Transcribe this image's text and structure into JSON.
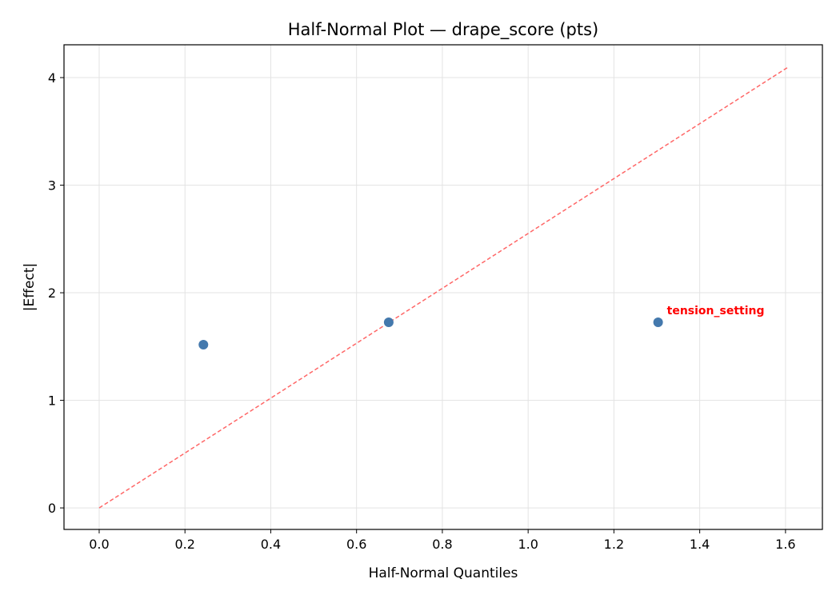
{
  "chart_data": {
    "type": "scatter",
    "title": "Half-Normal Plot — drape_score (pts)",
    "xlabel": "Half-Normal Quantiles",
    "ylabel": "|Effect|",
    "xlim": [
      -0.082,
      1.686
    ],
    "ylim": [
      -0.2,
      4.305
    ],
    "xticks": [
      0.0,
      0.2,
      0.4,
      0.6,
      0.8,
      1.0,
      1.2,
      1.4,
      1.6
    ],
    "xtick_labels": [
      "0.0",
      "0.2",
      "0.4",
      "0.6",
      "0.8",
      "1.0",
      "1.2",
      "1.4",
      "1.6"
    ],
    "yticks": [
      0,
      1,
      2,
      3,
      4
    ],
    "ytick_labels": [
      "0",
      "1",
      "2",
      "3",
      "4"
    ],
    "grid": true,
    "points": [
      {
        "x": 0.243,
        "y": 1.517
      },
      {
        "x": 0.675,
        "y": 1.725
      },
      {
        "x": 1.303,
        "y": 1.725,
        "label": "tension_setting"
      }
    ],
    "reference_line": {
      "x": [
        0,
        1.606
      ],
      "y": [
        0,
        4.097
      ],
      "style": "dashed"
    },
    "colors": {
      "points": "#4479ad",
      "line": "#ff6666",
      "annotation": "#ff0000"
    }
  }
}
